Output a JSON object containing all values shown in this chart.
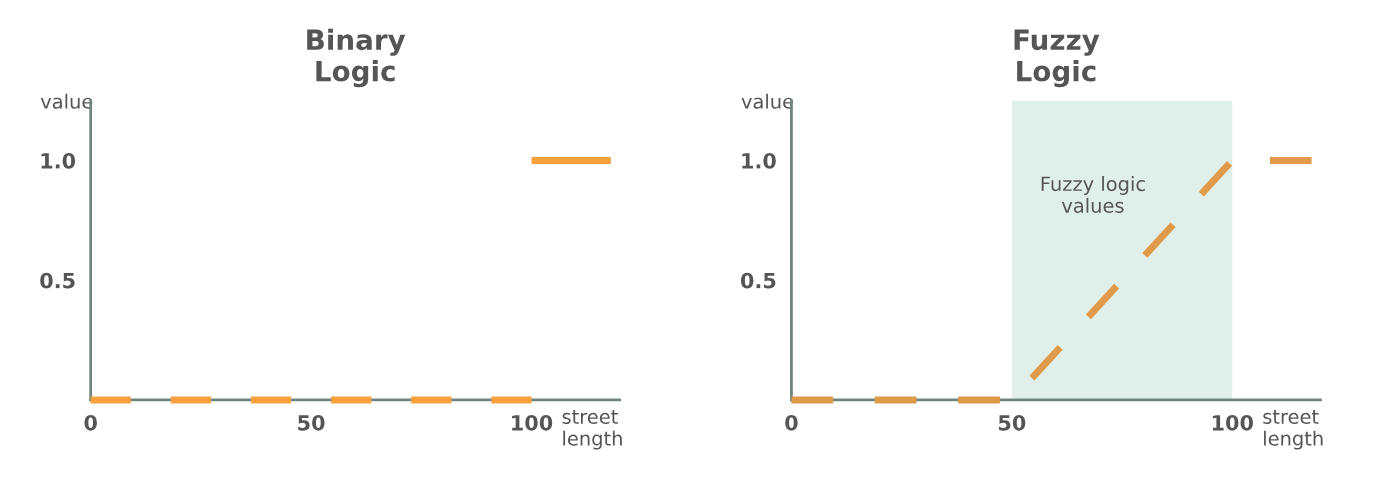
{
  "chart_data": [
    {
      "type": "line",
      "title": "Binary\nLogic",
      "xlabel": "street\nlength",
      "ylabel": "value",
      "xlim": [
        0,
        120
      ],
      "ylim": [
        0,
        1.25
      ],
      "xticks": [
        0,
        50,
        100
      ],
      "yticks": [
        0.5,
        {
          "value": 1,
          "label": "1.0"
        }
      ],
      "line_style": "dashed",
      "grid": false,
      "legend": false,
      "series": [
        {
          "color": "#f7a03c",
          "x": [
            0,
            100
          ],
          "values": [
            0,
            0
          ]
        },
        {
          "color": "#f7a03c",
          "x": [
            100,
            118
          ],
          "values": [
            1,
            1
          ]
        }
      ]
    },
    {
      "type": "line",
      "title": "Fuzzy\nLogic",
      "xlabel": "street\nlength",
      "ylabel": "value",
      "xlim": [
        0,
        120
      ],
      "ylim": [
        0,
        1.25
      ],
      "xticks": [
        0,
        50,
        100
      ],
      "yticks": [
        0.5,
        {
          "value": 1,
          "label": "1.0"
        }
      ],
      "line_style": "dashed",
      "grid": false,
      "legend": false,
      "bands": [
        {
          "axis": "x",
          "from": 50,
          "to": 100,
          "color": "#e0efe9"
        }
      ],
      "annotations": [
        "Fuzzy logic\nvalues"
      ],
      "series": [
        {
          "color": "#e09a4a",
          "x": [
            0,
            50,
            100,
            118
          ],
          "values": [
            0,
            0,
            1,
            1
          ]
        }
      ]
    }
  ]
}
